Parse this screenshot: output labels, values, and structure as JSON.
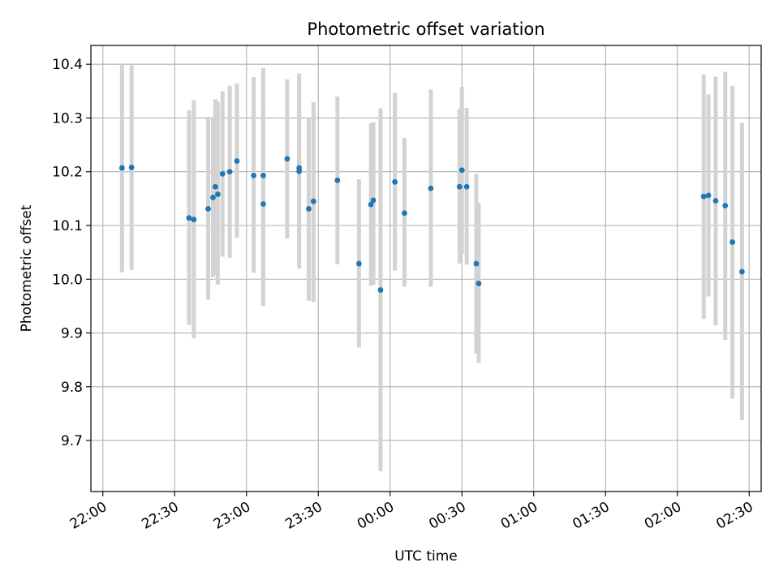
{
  "chart_data": {
    "type": "scatter",
    "title": "Photometric offset variation",
    "xlabel": "UTC time",
    "ylabel": "Photometric offset",
    "x_unit": "UTC clock time (HH:MM), spanning midnight",
    "x_ticks": [
      "22:00",
      "22:30",
      "23:00",
      "23:30",
      "00:00",
      "00:30",
      "01:00",
      "01:30",
      "02:00",
      "02:30"
    ],
    "y_ticks": [
      "9.7",
      "9.8",
      "9.9",
      "10.0",
      "10.1",
      "10.2",
      "10.3",
      "10.4"
    ],
    "xlim": [
      "21:55",
      "02:35"
    ],
    "ylim": [
      9.605,
      10.435
    ],
    "grid": true,
    "colors": {
      "point": "#1f77b4",
      "errorbar": "#d3d3d3",
      "grid": "#b0b0b0"
    },
    "points": [
      {
        "t": "22:08",
        "y": 10.207,
        "lo": 10.013,
        "hi": 10.4
      },
      {
        "t": "22:12",
        "y": 10.208,
        "lo": 10.017,
        "hi": 10.398
      },
      {
        "t": "22:36",
        "y": 10.114,
        "lo": 9.915,
        "hi": 10.314
      },
      {
        "t": "22:38",
        "y": 10.111,
        "lo": 9.89,
        "hi": 10.333
      },
      {
        "t": "22:44",
        "y": 10.131,
        "lo": 9.962,
        "hi": 10.302
      },
      {
        "t": "22:46",
        "y": 10.152,
        "lo": 10.004,
        "hi": 10.3
      },
      {
        "t": "22:47",
        "y": 10.172,
        "lo": 10.008,
        "hi": 10.335
      },
      {
        "t": "22:48",
        "y": 10.158,
        "lo": 9.99,
        "hi": 10.33
      },
      {
        "t": "22:50",
        "y": 10.196,
        "lo": 10.042,
        "hi": 10.35
      },
      {
        "t": "22:53",
        "y": 10.2,
        "lo": 10.04,
        "hi": 10.36
      },
      {
        "t": "22:56",
        "y": 10.22,
        "lo": 10.077,
        "hi": 10.364
      },
      {
        "t": "23:03",
        "y": 10.193,
        "lo": 10.012,
        "hi": 10.376
      },
      {
        "t": "23:07",
        "y": 10.14,
        "lo": 9.95,
        "hi": 10.33
      },
      {
        "t": "23:07",
        "y": 10.193,
        "lo": 9.995,
        "hi": 10.393
      },
      {
        "t": "23:17",
        "y": 10.224,
        "lo": 10.076,
        "hi": 10.372
      },
      {
        "t": "23:22",
        "y": 10.207,
        "lo": 10.03,
        "hi": 10.383
      },
      {
        "t": "23:22",
        "y": 10.201,
        "lo": 10.02,
        "hi": 10.382
      },
      {
        "t": "23:26",
        "y": 10.131,
        "lo": 9.96,
        "hi": 10.3
      },
      {
        "t": "23:28",
        "y": 10.145,
        "lo": 9.958,
        "hi": 10.33
      },
      {
        "t": "23:38",
        "y": 10.184,
        "lo": 10.028,
        "hi": 10.34
      },
      {
        "t": "23:47",
        "y": 10.029,
        "lo": 9.873,
        "hi": 10.186
      },
      {
        "t": "23:52",
        "y": 10.139,
        "lo": 9.988,
        "hi": 10.29
      },
      {
        "t": "23:53",
        "y": 10.147,
        "lo": 9.99,
        "hi": 10.292
      },
      {
        "t": "23:56",
        "y": 9.98,
        "lo": 9.643,
        "hi": 10.318
      },
      {
        "t": "00:02",
        "y": 10.181,
        "lo": 10.016,
        "hi": 10.347
      },
      {
        "t": "00:06",
        "y": 10.123,
        "lo": 9.986,
        "hi": 10.263
      },
      {
        "t": "00:17",
        "y": 10.169,
        "lo": 9.986,
        "hi": 10.353
      },
      {
        "t": "00:29",
        "y": 10.172,
        "lo": 10.029,
        "hi": 10.317
      },
      {
        "t": "00:30",
        "y": 10.203,
        "lo": 10.047,
        "hi": 10.358
      },
      {
        "t": "00:32",
        "y": 10.172,
        "lo": 10.027,
        "hi": 10.319
      },
      {
        "t": "00:36",
        "y": 10.029,
        "lo": 9.862,
        "hi": 10.196
      },
      {
        "t": "00:37",
        "y": 9.992,
        "lo": 9.844,
        "hi": 10.142
      },
      {
        "t": "02:11",
        "y": 10.154,
        "lo": 9.926,
        "hi": 10.381
      },
      {
        "t": "02:13",
        "y": 10.156,
        "lo": 9.968,
        "hi": 10.344
      },
      {
        "t": "02:16",
        "y": 10.146,
        "lo": 9.914,
        "hi": 10.377
      },
      {
        "t": "02:20",
        "y": 10.137,
        "lo": 9.887,
        "hi": 10.386
      },
      {
        "t": "02:23",
        "y": 10.069,
        "lo": 9.778,
        "hi": 10.36
      },
      {
        "t": "02:27",
        "y": 10.014,
        "lo": 9.738,
        "hi": 10.291
      }
    ]
  }
}
